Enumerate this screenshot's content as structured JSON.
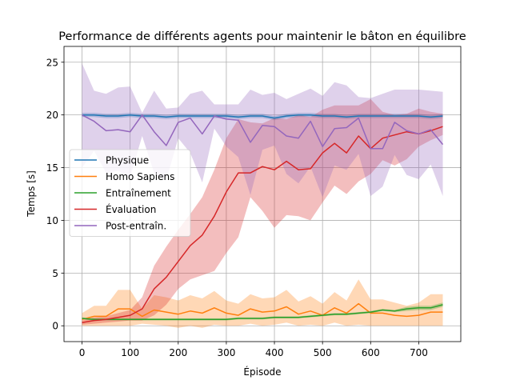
{
  "chart_data": {
    "type": "line",
    "title": "Performance de différents agents pour maintenir le bâton en équilibre",
    "xlabel": "Épisode",
    "ylabel": "Temps [s]",
    "xlim": [
      -37.5,
      787.5
    ],
    "ylim": [
      -1.5,
      26.5
    ],
    "xticks": [
      0,
      100,
      200,
      300,
      400,
      500,
      600,
      700
    ],
    "yticks": [
      0,
      5,
      10,
      15,
      20,
      25
    ],
    "grid": true,
    "legend_position": "center-left",
    "x": [
      0,
      25,
      50,
      75,
      100,
      125,
      150,
      175,
      200,
      225,
      250,
      275,
      300,
      325,
      350,
      375,
      400,
      425,
      450,
      475,
      500,
      525,
      550,
      575,
      600,
      625,
      650,
      675,
      700,
      725,
      750
    ],
    "series": [
      {
        "name": "Physique",
        "color": "#1f77b4",
        "values": [
          20.0,
          20.0,
          19.9,
          19.9,
          20.0,
          19.9,
          19.9,
          19.8,
          19.9,
          19.9,
          19.9,
          19.9,
          19.9,
          19.8,
          19.9,
          19.9,
          19.7,
          19.9,
          20.0,
          20.0,
          19.9,
          19.9,
          19.8,
          19.9,
          19.9,
          19.9,
          19.9,
          19.9,
          19.9,
          19.8,
          19.9
        ],
        "lower": [
          19.8,
          19.8,
          19.7,
          19.7,
          19.8,
          19.7,
          19.7,
          19.6,
          19.7,
          19.7,
          19.7,
          19.7,
          19.7,
          19.6,
          19.7,
          19.7,
          19.5,
          19.7,
          19.8,
          19.8,
          19.7,
          19.7,
          19.6,
          19.7,
          19.7,
          19.7,
          19.7,
          19.7,
          19.7,
          19.6,
          19.7
        ],
        "upper": [
          20.2,
          20.2,
          20.1,
          20.1,
          20.2,
          20.1,
          20.1,
          20.0,
          20.1,
          20.1,
          20.1,
          20.1,
          20.1,
          20.0,
          20.1,
          20.1,
          19.9,
          20.1,
          20.2,
          20.2,
          20.1,
          20.1,
          20.0,
          20.1,
          20.1,
          20.1,
          20.1,
          20.1,
          20.1,
          20.0,
          20.1
        ]
      },
      {
        "name": "Homo Sapiens",
        "color": "#ff7f0e",
        "values": [
          0.6,
          0.9,
          0.9,
          1.6,
          1.6,
          0.9,
          1.5,
          1.3,
          1.1,
          1.4,
          1.2,
          1.7,
          1.2,
          1.0,
          1.6,
          1.3,
          1.4,
          1.8,
          1.1,
          1.4,
          1.0,
          1.7,
          1.2,
          2.1,
          1.2,
          1.2,
          1.0,
          0.9,
          1.0,
          1.3,
          1.3
        ],
        "lower": [
          0.0,
          0.0,
          0.0,
          0.0,
          0.0,
          0.2,
          0.1,
          0.0,
          -0.2,
          0.0,
          -0.2,
          0.1,
          0.0,
          0.0,
          0.2,
          0.0,
          0.1,
          0.3,
          0.0,
          0.1,
          0.0,
          0.3,
          0.0,
          0.1,
          0.0,
          0.0,
          0.0,
          0.0,
          0.0,
          0.0,
          0.0
        ],
        "upper": [
          1.2,
          1.9,
          1.9,
          3.4,
          3.4,
          1.6,
          2.9,
          2.7,
          2.4,
          2.9,
          2.6,
          3.3,
          2.4,
          2.1,
          3.0,
          2.6,
          2.7,
          3.4,
          2.3,
          2.8,
          2.1,
          3.2,
          2.4,
          4.4,
          2.5,
          2.5,
          2.2,
          1.9,
          2.2,
          3.0,
          3.0
        ]
      },
      {
        "name": "Entraînement",
        "color": "#2ca02c",
        "values": [
          0.7,
          0.6,
          0.6,
          0.6,
          0.6,
          0.6,
          0.6,
          0.6,
          0.6,
          0.6,
          0.6,
          0.6,
          0.6,
          0.7,
          0.7,
          0.7,
          0.8,
          0.8,
          0.8,
          0.9,
          1.0,
          1.1,
          1.1,
          1.2,
          1.3,
          1.5,
          1.4,
          1.6,
          1.7,
          1.7,
          2.0
        ],
        "lower": [
          0.6,
          0.5,
          0.5,
          0.5,
          0.5,
          0.5,
          0.5,
          0.5,
          0.5,
          0.5,
          0.5,
          0.5,
          0.5,
          0.6,
          0.6,
          0.6,
          0.7,
          0.7,
          0.7,
          0.8,
          0.9,
          1.0,
          1.0,
          1.1,
          1.2,
          1.4,
          1.3,
          1.4,
          1.5,
          1.5,
          1.8
        ],
        "upper": [
          0.8,
          0.7,
          0.7,
          0.7,
          0.7,
          0.7,
          0.7,
          0.7,
          0.7,
          0.7,
          0.7,
          0.7,
          0.7,
          0.8,
          0.8,
          0.8,
          0.9,
          0.9,
          0.9,
          1.0,
          1.1,
          1.2,
          1.2,
          1.3,
          1.4,
          1.6,
          1.5,
          1.8,
          1.9,
          1.9,
          2.2
        ]
      },
      {
        "name": "Évaluation",
        "color": "#d62728",
        "values": [
          0.3,
          0.5,
          0.6,
          0.8,
          1.0,
          1.6,
          3.5,
          4.6,
          6.1,
          7.6,
          8.6,
          10.4,
          12.7,
          14.5,
          14.5,
          15.1,
          14.8,
          15.6,
          14.8,
          14.9,
          16.4,
          17.3,
          16.4,
          18.0,
          16.8,
          17.8,
          18.1,
          18.4,
          18.2,
          18.5,
          18.9
        ],
        "lower": [
          0.1,
          0.2,
          0.3,
          0.4,
          0.5,
          0.5,
          1.0,
          2.0,
          3.5,
          4.4,
          4.8,
          5.2,
          6.9,
          8.4,
          12.2,
          10.9,
          9.3,
          10.5,
          10.4,
          10.0,
          11.7,
          13.3,
          12.5,
          13.7,
          14.4,
          15.7,
          15.2,
          15.8,
          17.0,
          17.6,
          18.1
        ],
        "upper": [
          0.5,
          0.8,
          0.9,
          1.2,
          1.5,
          2.7,
          5.7,
          7.5,
          9.1,
          10.6,
          12.2,
          14.8,
          17.8,
          19.6,
          19.3,
          19.2,
          19.7,
          19.6,
          20.0,
          19.8,
          20.5,
          20.9,
          20.9,
          20.9,
          21.5,
          20.3,
          20.0,
          20.1,
          20.6,
          20.3,
          20.1
        ]
      },
      {
        "name": "Post-entraîn.",
        "color": "#9467bd",
        "values": [
          20.0,
          19.4,
          18.5,
          18.6,
          18.4,
          20.0,
          18.4,
          17.1,
          19.3,
          19.7,
          18.2,
          19.9,
          19.6,
          19.5,
          17.4,
          19.0,
          18.9,
          18.0,
          17.8,
          19.4,
          17.0,
          18.7,
          18.8,
          19.7,
          16.8,
          16.8,
          19.3,
          18.5,
          18.2,
          18.6,
          17.2
        ],
        "lower": [
          15.0,
          16.6,
          14.5,
          14.7,
          14.1,
          18.0,
          14.5,
          13.8,
          17.8,
          16.4,
          13.6,
          18.7,
          17.0,
          16.0,
          12.4,
          16.7,
          17.1,
          14.4,
          13.5,
          15.1,
          12.2,
          15.2,
          14.8,
          16.3,
          12.3,
          13.2,
          16.2,
          14.3,
          13.9,
          15.3,
          12.3
        ],
        "upper": [
          24.9,
          22.3,
          22.0,
          22.6,
          22.7,
          20.2,
          22.3,
          20.6,
          20.7,
          22.0,
          22.3,
          21.0,
          21.0,
          21.0,
          22.4,
          21.9,
          22.1,
          21.5,
          22.0,
          22.5,
          21.8,
          23.1,
          22.8,
          21.7,
          21.6,
          22.0,
          22.4,
          22.4,
          22.4,
          22.3,
          22.2
        ]
      }
    ]
  }
}
